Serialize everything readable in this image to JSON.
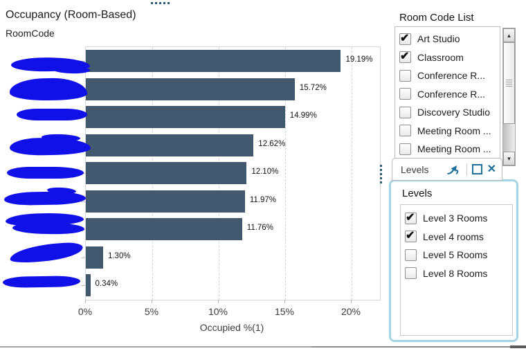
{
  "chart": {
    "title": "Occupancy (Room-Based)",
    "axis_heading": "RoomCode",
    "xlabel": "Occupied %(1)"
  },
  "chart_data": {
    "type": "bar",
    "orientation": "horizontal",
    "title": "Occupancy (Room-Based)",
    "ylabel": "RoomCode",
    "xlabel": "Occupied %(1)",
    "categories_redacted": true,
    "categories": [
      "(redacted)",
      "(redacted)",
      "(redacted)",
      "(redacted)",
      "(redacted)",
      "(redacted)",
      "(redacted)",
      "(redacted)",
      "(redacted)"
    ],
    "values": [
      19.19,
      15.72,
      14.99,
      12.62,
      12.1,
      11.97,
      11.76,
      1.3,
      0.34
    ],
    "data_labels": [
      "19.19%",
      "15.72%",
      "14.99%",
      "12.62%",
      "12.10%",
      "11.97%",
      "11.76%",
      "1.30%",
      "0.34%"
    ],
    "x_ticks": [
      "0%",
      "5%",
      "10%",
      "15%",
      "20%"
    ],
    "x_tick_values": [
      0,
      5,
      10,
      15,
      20
    ],
    "xlim": [
      0,
      22.1
    ],
    "grid": "vertical-dashed",
    "legend": "none"
  },
  "room_code_list": {
    "title": "Room Code List",
    "items": [
      {
        "label": "Art Studio",
        "checked": true
      },
      {
        "label": "Classroom",
        "checked": true
      },
      {
        "label": "Conference R...",
        "checked": false
      },
      {
        "label": "Conference R...",
        "checked": false
      },
      {
        "label": "Discovery Studio",
        "checked": false
      },
      {
        "label": "Meeting Room ...",
        "checked": false
      },
      {
        "label": "Meeting Room ...",
        "checked": false
      }
    ],
    "scrollbar": {
      "up_arrow": "▲",
      "down_arrow": "▼"
    }
  },
  "levels_window": {
    "tab_title": "Levels",
    "heading": "Levels",
    "items": [
      {
        "label": "Level 3 Rooms",
        "checked": true
      },
      {
        "label": "Level 4 rooms",
        "checked": true
      },
      {
        "label": "Level 5 Rooms",
        "checked": false
      },
      {
        "label": "Level 8 Rooms",
        "checked": false
      }
    ],
    "close_icon": "✕"
  },
  "colors": {
    "bar": "#41586e",
    "redaction_ink": "#1010e8",
    "levels_border": "#a6d3e3",
    "icon_blue": "#1d6f9c",
    "handle_dots": "#2a5a74"
  }
}
